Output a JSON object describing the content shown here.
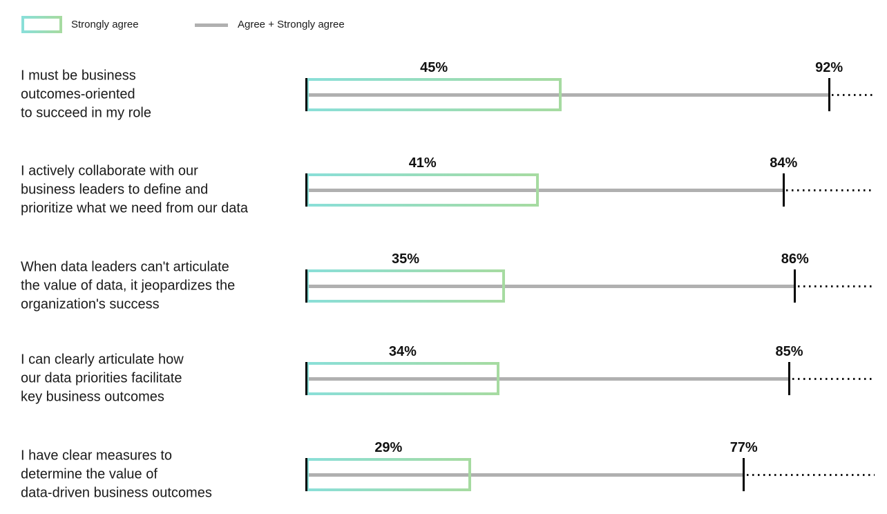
{
  "legend": {
    "strongly_agree_label": "Strongly agree",
    "agree_total_label": "Agree + Strongly agree"
  },
  "colors": {
    "gradient_start_teal": "#8adfd8",
    "gradient_end_green": "#a6dba1",
    "agree_line_gray": "#b0b0b0",
    "tick_black": "#000000",
    "text": "#1a1a1a"
  },
  "chart_data": {
    "type": "bar",
    "orientation": "horizontal",
    "title": "",
    "xlabel": "",
    "ylabel": "",
    "xlim": [
      0,
      100
    ],
    "unit": "%",
    "grid": false,
    "legend_position": "top-left",
    "legend": [
      "Strongly agree",
      "Agree + Strongly agree"
    ],
    "categories": [
      "I must be business outcomes-oriented to succeed in my role",
      "I actively collaborate with our business leaders to define and prioritize what we need from our data",
      "When data leaders can't articulate the value of data, it jeopardizes the organization's success",
      "I can clearly articulate how our data priorities facilitate key business outcomes",
      "I have clear measures to determine the value of data-driven business outcomes"
    ],
    "series": [
      {
        "name": "Strongly agree",
        "values": [
          45,
          41,
          35,
          34,
          29
        ]
      },
      {
        "name": "Agree + Strongly agree",
        "values": [
          92,
          84,
          86,
          85,
          77
        ]
      }
    ],
    "rows": [
      {
        "label": "I must be business\noutcomes-oriented\nto succeed in my role",
        "strongly_agree": 45,
        "agree_total": 92,
        "strongly_agree_label": "45%",
        "agree_total_label": "92%"
      },
      {
        "label": "I actively collaborate with our\nbusiness leaders to define and\nprioritize what we need from our data",
        "strongly_agree": 41,
        "agree_total": 84,
        "strongly_agree_label": "41%",
        "agree_total_label": "84%"
      },
      {
        "label": "When data leaders can't articulate\nthe value of data, it jeopardizes the\norganization's success",
        "strongly_agree": 35,
        "agree_total": 86,
        "strongly_agree_label": "35%",
        "agree_total_label": "86%"
      },
      {
        "label": "I can clearly articulate how\nour data priorities facilitate\nkey business outcomes",
        "strongly_agree": 34,
        "agree_total": 85,
        "strongly_agree_label": "34%",
        "agree_total_label": "85%"
      },
      {
        "label": "I have clear measures to\ndetermine the value of\ndata-driven business outcomes",
        "strongly_agree": 29,
        "agree_total": 77,
        "strongly_agree_label": "29%",
        "agree_total_label": "77%"
      }
    ]
  }
}
